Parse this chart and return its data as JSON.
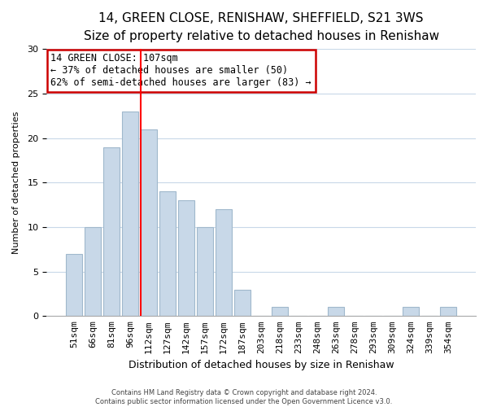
{
  "title": "14, GREEN CLOSE, RENISHAW, SHEFFIELD, S21 3WS",
  "subtitle": "Size of property relative to detached houses in Renishaw",
  "xlabel": "Distribution of detached houses by size in Renishaw",
  "ylabel": "Number of detached properties",
  "bar_labels": [
    "51sqm",
    "66sqm",
    "81sqm",
    "96sqm",
    "112sqm",
    "127sqm",
    "142sqm",
    "157sqm",
    "172sqm",
    "187sqm",
    "203sqm",
    "218sqm",
    "233sqm",
    "248sqm",
    "263sqm",
    "278sqm",
    "293sqm",
    "309sqm",
    "324sqm",
    "339sqm",
    "354sqm"
  ],
  "bar_values": [
    7,
    10,
    19,
    23,
    21,
    14,
    13,
    10,
    12,
    3,
    0,
    1,
    0,
    0,
    1,
    0,
    0,
    0,
    1,
    0,
    1
  ],
  "bar_color": "#c8d8e8",
  "bar_edgecolor": "#a0b8cc",
  "ylim": [
    0,
    30
  ],
  "yticks": [
    0,
    5,
    10,
    15,
    20,
    25,
    30
  ],
  "redline_index": 4,
  "annotation_title": "14 GREEN CLOSE: 107sqm",
  "annotation_line1": "← 37% of detached houses are smaller (50)",
  "annotation_line2": "62% of semi-detached houses are larger (83) →",
  "footer1": "Contains HM Land Registry data © Crown copyright and database right 2024.",
  "footer2": "Contains public sector information licensed under the Open Government Licence v3.0.",
  "background_color": "#ffffff",
  "grid_color": "#c8d8e8",
  "title_fontsize": 11,
  "subtitle_fontsize": 9.5,
  "xlabel_fontsize": 9,
  "ylabel_fontsize": 8,
  "tick_fontsize": 8,
  "annot_fontsize": 8.5,
  "footer_fontsize": 6
}
